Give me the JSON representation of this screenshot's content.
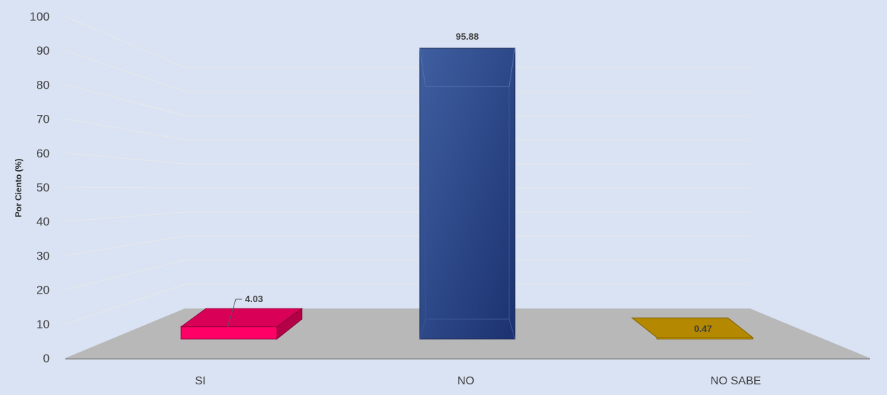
{
  "chart_data": {
    "type": "bar",
    "categories": [
      "SI",
      "NO",
      "NO SABE"
    ],
    "values": [
      4.03,
      95.88,
      0.47
    ],
    "data_labels": [
      "4.03",
      "95.88",
      "0.47"
    ],
    "title": "",
    "xlabel": "",
    "ylabel": "Por Ciento (%)",
    "ylim": [
      0,
      100
    ],
    "yticks": [
      0,
      10,
      20,
      30,
      40,
      50,
      60,
      70,
      80,
      90,
      100
    ],
    "grid": true,
    "legend": "none",
    "style": "3d-perspective",
    "colors": [
      "#ff0066",
      "#2f4a8c",
      "#d4a000"
    ],
    "floor_color": "#b8b8b8",
    "background": "#dae3f3"
  }
}
